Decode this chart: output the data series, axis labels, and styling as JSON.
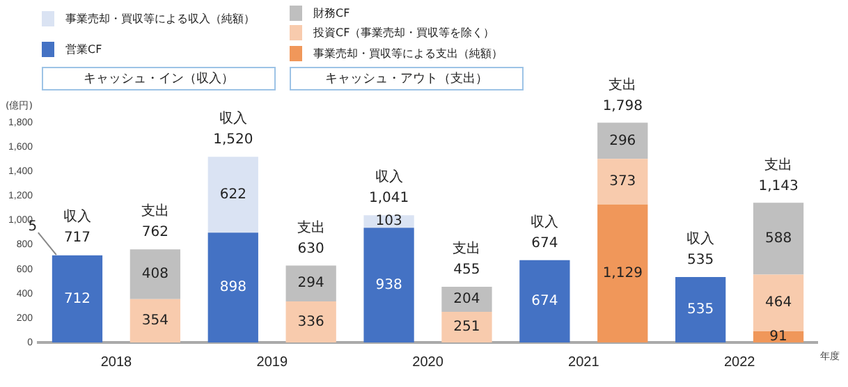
{
  "chart_data": {
    "type": "bar",
    "stacked": true,
    "legend": "top left",
    "ylabel": "(億円)",
    "xlabel": "年度",
    "categories": [
      "2018",
      null,
      "2019",
      null,
      "2020",
      null,
      "2021",
      null,
      "2022",
      null
    ],
    "series": [
      {
        "name": "営業CF",
        "color": "#4472c4",
        "values": [
          712,
          null,
          898,
          null,
          938,
          null,
          674,
          null,
          535,
          null
        ]
      },
      {
        "name": "事業売却・買収等による収入（純額）",
        "color": "#dae3f3",
        "values": [
          5,
          null,
          622,
          null,
          103,
          null,
          null,
          null,
          null,
          null
        ]
      },
      {
        "name": "事業売却・買収等による支出（純額）",
        "color": "#f0975a",
        "values": [
          null,
          null,
          null,
          null,
          null,
          null,
          null,
          1129,
          null,
          91
        ],
        "value_labels": [
          null,
          null,
          null,
          null,
          null,
          null,
          null,
          "1,129",
          null,
          "91"
        ]
      },
      {
        "name": "投資CF（事業売却・買収等を除く）",
        "color": "#f8cbad",
        "values": [
          null,
          354,
          null,
          336,
          null,
          251,
          null,
          373,
          null,
          464
        ]
      },
      {
        "name": "財務CF",
        "color": "#bfbfbf",
        "values": [
          null,
          408,
          null,
          294,
          null,
          204,
          null,
          296,
          null,
          588
        ]
      }
    ],
    "data_labels": true,
    "totals": [
      "収入\n717",
      "支出\n762",
      "収入\n1,520",
      "支出\n630",
      "収入\n1,041",
      "支出\n455",
      "収入\n674",
      "支出\n1,798",
      "収入\n535",
      "支出\n1,143"
    ],
    "annotations": [
      "キャッシュ・イン（収入）",
      "キャッシュ・アウト（支出）"
    ],
    "ylim": [
      0,
      1800
    ],
    "yticks": [
      0,
      200,
      400,
      600,
      800,
      {
        "value": 1000,
        "label": "1,000"
      },
      {
        "value": 1200,
        "label": "1,200"
      },
      {
        "value": 1400,
        "label": "1,400"
      },
      {
        "value": 1600,
        "label": "1,600"
      },
      {
        "value": 1800,
        "label": "1,800"
      }
    ]
  }
}
